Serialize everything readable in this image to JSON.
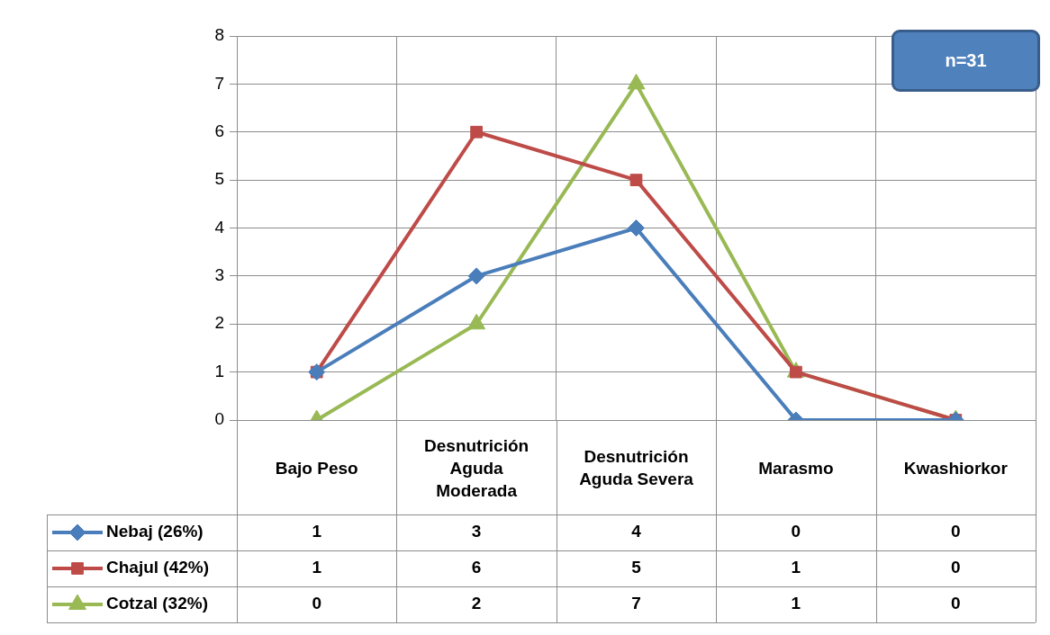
{
  "chart_data": {
    "type": "line",
    "categories": [
      "Bajo Peso",
      "Desnutrición Aguda Moderada",
      "Desnutrición Aguda Severa",
      "Marasmo",
      "Kwashiorkor"
    ],
    "series": [
      {
        "name": "Nebaj (26%)",
        "color": "#4a7ebb",
        "marker": "diamond",
        "values": [
          1,
          3,
          4,
          0,
          0
        ]
      },
      {
        "name": "Chajul (42%)",
        "color": "#be4b48",
        "marker": "square",
        "values": [
          1,
          6,
          5,
          1,
          0
        ]
      },
      {
        "name": "Cotzal (32%)",
        "color": "#98b954",
        "marker": "triangle",
        "values": [
          0,
          2,
          7,
          1,
          0
        ]
      }
    ],
    "ylim": [
      0,
      8
    ],
    "yticks": [
      0,
      1,
      2,
      3,
      4,
      5,
      6,
      7,
      8
    ],
    "grid": true,
    "legend": "bottom left",
    "data_labels": true,
    "line_style": "solid",
    "annotations": [
      "n=31"
    ]
  }
}
